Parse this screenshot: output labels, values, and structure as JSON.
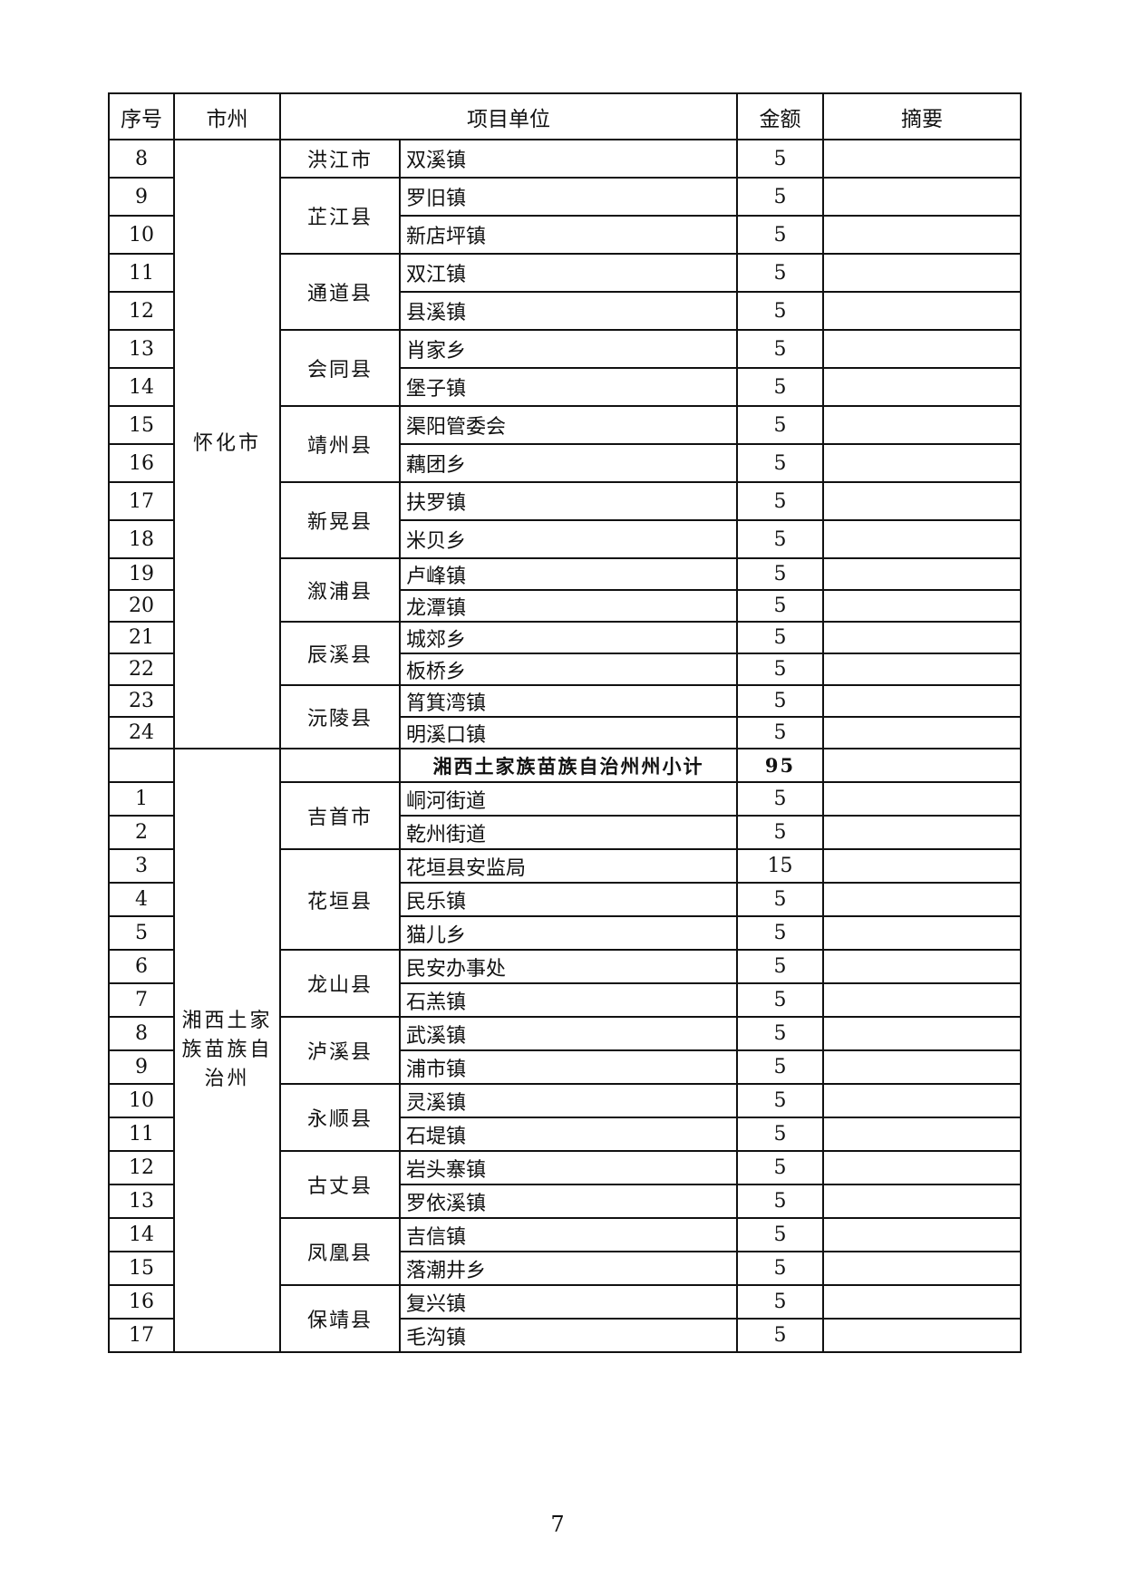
{
  "header": {
    "seq": "序号",
    "city": "市州",
    "unit": "项目单位",
    "amount": "金额",
    "remark": "摘要"
  },
  "sections": [
    {
      "city": "怀化市",
      "counties": [
        {
          "name": "洪江市",
          "rows": [
            {
              "seq": "8",
              "unit": "双溪镇",
              "amount": "5"
            }
          ]
        },
        {
          "name": "芷江县",
          "rows": [
            {
              "seq": "9",
              "unit": "罗旧镇",
              "amount": "5"
            },
            {
              "seq": "10",
              "unit": "新店坪镇",
              "amount": "5"
            }
          ]
        },
        {
          "name": "通道县",
          "rows": [
            {
              "seq": "11",
              "unit": "双江镇",
              "amount": "5"
            },
            {
              "seq": "12",
              "unit": "县溪镇",
              "amount": "5"
            }
          ]
        },
        {
          "name": "会同县",
          "rows": [
            {
              "seq": "13",
              "unit": "肖家乡",
              "amount": "5"
            },
            {
              "seq": "14",
              "unit": "堡子镇",
              "amount": "5"
            }
          ]
        },
        {
          "name": "靖州县",
          "rows": [
            {
              "seq": "15",
              "unit": "渠阳管委会",
              "amount": "5"
            },
            {
              "seq": "16",
              "unit": "藕团乡",
              "amount": "5"
            }
          ]
        },
        {
          "name": "新晃县",
          "rows": [
            {
              "seq": "17",
              "unit": "扶罗镇",
              "amount": "5"
            },
            {
              "seq": "18",
              "unit": "米贝乡",
              "amount": "5"
            }
          ]
        },
        {
          "name": "溆浦县",
          "rows": [
            {
              "seq": "19",
              "unit": "卢峰镇",
              "amount": "5"
            },
            {
              "seq": "20",
              "unit": "龙潭镇",
              "amount": "5"
            }
          ]
        },
        {
          "name": "辰溪县",
          "rows": [
            {
              "seq": "21",
              "unit": "城郊乡",
              "amount": "5"
            },
            {
              "seq": "22",
              "unit": "板桥乡",
              "amount": "5"
            }
          ]
        },
        {
          "name": "沅陵县",
          "rows": [
            {
              "seq": "23",
              "unit": "筲箕湾镇",
              "amount": "5"
            },
            {
              "seq": "24",
              "unit": "明溪口镇",
              "amount": "5"
            }
          ]
        }
      ]
    },
    {
      "city": "湘西土家族苗族自治州",
      "subtotal": {
        "label": "湘西土家族苗族自治州州小计",
        "amount": "95"
      },
      "counties": [
        {
          "name": "吉首市",
          "rows": [
            {
              "seq": "1",
              "unit": "峒河街道",
              "amount": "5"
            },
            {
              "seq": "2",
              "unit": "乾州街道",
              "amount": "5"
            }
          ]
        },
        {
          "name": "花垣县",
          "rows": [
            {
              "seq": "3",
              "unit": "花垣县安监局",
              "amount": "15"
            },
            {
              "seq": "4",
              "unit": "民乐镇",
              "amount": "5"
            },
            {
              "seq": "5",
              "unit": "猫儿乡",
              "amount": "5"
            }
          ]
        },
        {
          "name": "龙山县",
          "rows": [
            {
              "seq": "6",
              "unit": "民安办事处",
              "amount": "5"
            },
            {
              "seq": "7",
              "unit": "石羔镇",
              "amount": "5"
            }
          ]
        },
        {
          "name": "泸溪县",
          "rows": [
            {
              "seq": "8",
              "unit": "武溪镇",
              "amount": "5"
            },
            {
              "seq": "9",
              "unit": "浦市镇",
              "amount": "5"
            }
          ]
        },
        {
          "name": "永顺县",
          "rows": [
            {
              "seq": "10",
              "unit": "灵溪镇",
              "amount": "5"
            },
            {
              "seq": "11",
              "unit": "石堤镇",
              "amount": "5"
            }
          ]
        },
        {
          "name": "古丈县",
          "rows": [
            {
              "seq": "12",
              "unit": "岩头寨镇",
              "amount": "5"
            },
            {
              "seq": "13",
              "unit": "罗依溪镇",
              "amount": "5"
            }
          ]
        },
        {
          "name": "凤凰县",
          "rows": [
            {
              "seq": "14",
              "unit": "吉信镇",
              "amount": "5"
            },
            {
              "seq": "15",
              "unit": "落潮井乡",
              "amount": "5"
            }
          ]
        },
        {
          "name": "保靖县",
          "rows": [
            {
              "seq": "16",
              "unit": "复兴镇",
              "amount": "5"
            },
            {
              "seq": "17",
              "unit": "毛沟镇",
              "amount": "5"
            }
          ]
        }
      ]
    }
  ],
  "page_number": "7"
}
